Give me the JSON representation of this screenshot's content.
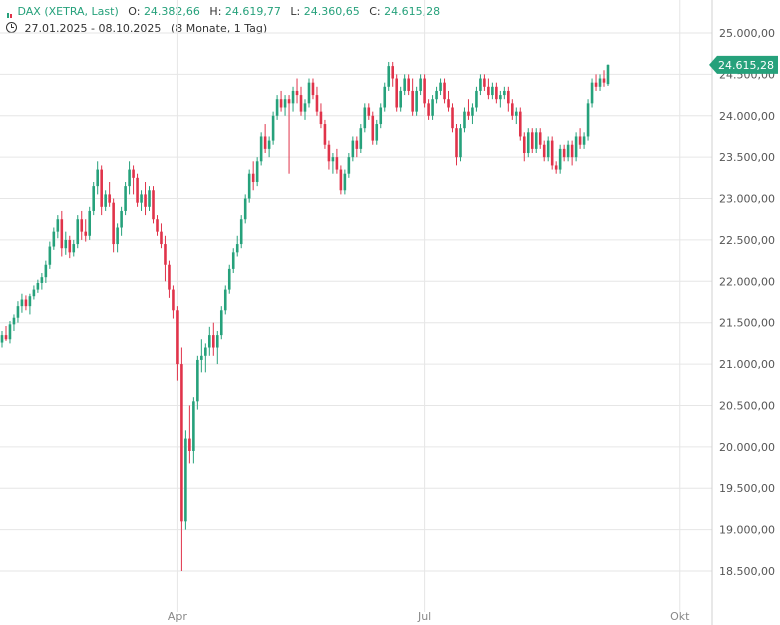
{
  "header": {
    "symbol": "DAX (XETRA, Last)",
    "open_label": "O:",
    "open": "24.382,66",
    "high_label": "H:",
    "high": "24.619,77",
    "low_label": "L:",
    "low": "24.360,65",
    "close_label": "C:",
    "close": "24.615,28",
    "date_range": "27.01.2025 - 08.10.2025",
    "period": "(8 Monate, 1 Tag)"
  },
  "colors": {
    "up": "#26a17b",
    "down": "#e0334a",
    "grid": "#e6e6e6",
    "axis_text": "#555555",
    "price_tag": "#26a17b"
  },
  "chart_data": {
    "type": "candlestick",
    "title": "DAX (XETRA, Last)",
    "ylim": [
      18500,
      25200
    ],
    "y_ticks": [
      "25.000,00",
      "24.500,00",
      "24.000,00",
      "23.500,00",
      "23.000,00",
      "22.500,00",
      "22.000,00",
      "21.500,00",
      "21.000,00",
      "20.500,00",
      "20.000,00",
      "19.500,00",
      "19.000,00",
      "18.500,00"
    ],
    "y_tick_values": [
      25000,
      24500,
      24000,
      23500,
      23000,
      22500,
      22000,
      21500,
      21000,
      20500,
      20000,
      19500,
      19000,
      18500
    ],
    "x_ticks": [
      {
        "label": "Apr",
        "index": 44
      },
      {
        "label": "Jul",
        "index": 106
      },
      {
        "label": "Okt",
        "index": 170
      }
    ],
    "last_price_label": "24.615,28",
    "last_price": 24615,
    "candles": [
      [
        21260,
        21400,
        21200,
        21350
      ],
      [
        21350,
        21460,
        21280,
        21300
      ],
      [
        21300,
        21520,
        21250,
        21480
      ],
      [
        21480,
        21600,
        21400,
        21560
      ],
      [
        21560,
        21760,
        21500,
        21700
      ],
      [
        21700,
        21850,
        21620,
        21780
      ],
      [
        21780,
        21830,
        21650,
        21700
      ],
      [
        21700,
        21850,
        21600,
        21820
      ],
      [
        21820,
        21950,
        21780,
        21900
      ],
      [
        21900,
        22020,
        21860,
        21980
      ],
      [
        21980,
        22100,
        21900,
        22050
      ],
      [
        22050,
        22250,
        21980,
        22200
      ],
      [
        22200,
        22480,
        22150,
        22420
      ],
      [
        22420,
        22650,
        22380,
        22600
      ],
      [
        22600,
        22800,
        22520,
        22750
      ],
      [
        22750,
        22850,
        22300,
        22400
      ],
      [
        22400,
        22600,
        22320,
        22500
      ],
      [
        22500,
        22550,
        22280,
        22350
      ],
      [
        22350,
        22500,
        22300,
        22450
      ],
      [
        22450,
        22800,
        22400,
        22750
      ],
      [
        22750,
        22850,
        22500,
        22600
      ],
      [
        22600,
        22750,
        22480,
        22550
      ],
      [
        22550,
        22900,
        22500,
        22850
      ],
      [
        22850,
        23200,
        22800,
        23150
      ],
      [
        23150,
        23450,
        23050,
        23350
      ],
      [
        23350,
        23400,
        22800,
        22900
      ],
      [
        22900,
        23100,
        22850,
        23050
      ],
      [
        23050,
        23200,
        22900,
        22950
      ],
      [
        22950,
        23000,
        22350,
        22450
      ],
      [
        22450,
        22700,
        22350,
        22650
      ],
      [
        22650,
        22900,
        22550,
        22850
      ],
      [
        22850,
        23200,
        22800,
        23150
      ],
      [
        23150,
        23450,
        23050,
        23350
      ],
      [
        23350,
        23400,
        23050,
        23250
      ],
      [
        23250,
        23300,
        22900,
        22950
      ],
      [
        22950,
        23100,
        22850,
        23050
      ],
      [
        23050,
        23200,
        22800,
        22900
      ],
      [
        22900,
        23150,
        22850,
        23100
      ],
      [
        23100,
        23150,
        22700,
        22750
      ],
      [
        22750,
        22800,
        22550,
        22600
      ],
      [
        22600,
        22700,
        22400,
        22450
      ],
      [
        22450,
        22550,
        22000,
        22200
      ],
      [
        22200,
        22250,
        21800,
        21900
      ],
      [
        21900,
        21950,
        21550,
        21650
      ],
      [
        21650,
        21700,
        20800,
        21000
      ],
      [
        21000,
        21200,
        18500,
        19100
      ],
      [
        19100,
        20200,
        19000,
        20100
      ],
      [
        20100,
        20500,
        19800,
        19950
      ],
      [
        19950,
        20600,
        19800,
        20550
      ],
      [
        20550,
        21100,
        20450,
        21050
      ],
      [
        21050,
        21300,
        20900,
        21100
      ],
      [
        21100,
        21250,
        20900,
        21200
      ],
      [
        21200,
        21450,
        21100,
        21350
      ],
      [
        21350,
        21500,
        21100,
        21200
      ],
      [
        21200,
        21400,
        21000,
        21350
      ],
      [
        21350,
        21700,
        21300,
        21650
      ],
      [
        21650,
        21950,
        21600,
        21900
      ],
      [
        21900,
        22200,
        21850,
        22150
      ],
      [
        22150,
        22400,
        22100,
        22350
      ],
      [
        22350,
        22550,
        22300,
        22450
      ],
      [
        22450,
        22800,
        22400,
        22750
      ],
      [
        22750,
        23050,
        22700,
        23000
      ],
      [
        23000,
        23350,
        22950,
        23300
      ],
      [
        23300,
        23450,
        23100,
        23200
      ],
      [
        23200,
        23500,
        23150,
        23450
      ],
      [
        23450,
        23800,
        23400,
        23750
      ],
      [
        23750,
        23900,
        23550,
        23600
      ],
      [
        23600,
        23750,
        23500,
        23700
      ],
      [
        23700,
        24050,
        23650,
        24000
      ],
      [
        24000,
        24250,
        23950,
        24200
      ],
      [
        24200,
        24300,
        24050,
        24100
      ],
      [
        24100,
        24250,
        24000,
        24200
      ],
      [
        24200,
        24250,
        23300,
        24150
      ],
      [
        24150,
        24350,
        24050,
        24300
      ],
      [
        24300,
        24450,
        24150,
        24250
      ],
      [
        24250,
        24350,
        24000,
        24050
      ],
      [
        24050,
        24200,
        23950,
        24150
      ],
      [
        24150,
        24450,
        24100,
        24400
      ],
      [
        24400,
        24450,
        24200,
        24250
      ],
      [
        24250,
        24350,
        24000,
        24050
      ],
      [
        24050,
        24150,
        23850,
        23900
      ],
      [
        23900,
        23950,
        23600,
        23650
      ],
      [
        23650,
        23700,
        23350,
        23450
      ],
      [
        23450,
        23550,
        23300,
        23500
      ],
      [
        23500,
        23600,
        23300,
        23350
      ],
      [
        23350,
        23400,
        23050,
        23100
      ],
      [
        23100,
        23350,
        23050,
        23300
      ],
      [
        23300,
        23550,
        23250,
        23500
      ],
      [
        23500,
        23750,
        23450,
        23700
      ],
      [
        23700,
        23750,
        23500,
        23600
      ],
      [
        23600,
        23900,
        23550,
        23850
      ],
      [
        23850,
        24150,
        23800,
        24100
      ],
      [
        24100,
        24150,
        23950,
        24000
      ],
      [
        24000,
        24050,
        23650,
        23700
      ],
      [
        23700,
        23950,
        23650,
        23900
      ],
      [
        23900,
        24150,
        23850,
        24100
      ],
      [
        24100,
        24400,
        24050,
        24350
      ],
      [
        24350,
        24650,
        24300,
        24600
      ],
      [
        24600,
        24650,
        24350,
        24450
      ],
      [
        24450,
        24500,
        24050,
        24100
      ],
      [
        24100,
        24350,
        24050,
        24300
      ],
      [
        24300,
        24500,
        24250,
        24450
      ],
      [
        24450,
        24500,
        24250,
        24300
      ],
      [
        24300,
        24450,
        24000,
        24050
      ],
      [
        24050,
        24350,
        24000,
        24300
      ],
      [
        24300,
        24500,
        24250,
        24450
      ],
      [
        24450,
        24500,
        24100,
        24150
      ],
      [
        24150,
        24200,
        23950,
        24000
      ],
      [
        24000,
        24250,
        23950,
        24200
      ],
      [
        24200,
        24350,
        24150,
        24300
      ],
      [
        24300,
        24450,
        24250,
        24400
      ],
      [
        24400,
        24450,
        24150,
        24200
      ],
      [
        24200,
        24300,
        24050,
        24100
      ],
      [
        24100,
        24150,
        23800,
        23850
      ],
      [
        23850,
        23900,
        23400,
        23500
      ],
      [
        23500,
        23900,
        23450,
        23850
      ],
      [
        23850,
        24100,
        23800,
        24050
      ],
      [
        24050,
        24200,
        23950,
        24000
      ],
      [
        24000,
        24150,
        23900,
        24100
      ],
      [
        24100,
        24350,
        24050,
        24300
      ],
      [
        24300,
        24500,
        24250,
        24450
      ],
      [
        24450,
        24500,
        24300,
        24350
      ],
      [
        24350,
        24450,
        24200,
        24250
      ],
      [
        24250,
        24400,
        24200,
        24350
      ],
      [
        24350,
        24400,
        24150,
        24200
      ],
      [
        24200,
        24300,
        24100,
        24250
      ],
      [
        24250,
        24350,
        24200,
        24300
      ],
      [
        24300,
        24350,
        24050,
        24150
      ],
      [
        24150,
        24200,
        23950,
        24000
      ],
      [
        24000,
        24100,
        23900,
        24050
      ],
      [
        24050,
        24100,
        23700,
        23750
      ],
      [
        23750,
        23800,
        23450,
        23550
      ],
      [
        23550,
        23850,
        23500,
        23800
      ],
      [
        23800,
        23850,
        23550,
        23600
      ],
      [
        23600,
        23850,
        23550,
        23800
      ],
      [
        23800,
        23850,
        23600,
        23650
      ],
      [
        23650,
        23700,
        23450,
        23500
      ],
      [
        23500,
        23750,
        23450,
        23700
      ],
      [
        23700,
        23750,
        23350,
        23400
      ],
      [
        23400,
        23450,
        23300,
        23350
      ],
      [
        23350,
        23650,
        23300,
        23600
      ],
      [
        23600,
        23650,
        23450,
        23500
      ],
      [
        23500,
        23700,
        23450,
        23650
      ],
      [
        23650,
        23700,
        23400,
        23500
      ],
      [
        23500,
        23800,
        23450,
        23750
      ],
      [
        23750,
        23850,
        23600,
        23650
      ],
      [
        23650,
        23800,
        23600,
        23750
      ],
      [
        23750,
        24200,
        23700,
        24150
      ],
      [
        24150,
        24450,
        24100,
        24400
      ],
      [
        24400,
        24500,
        24300,
        24350
      ],
      [
        24350,
        24500,
        24300,
        24450
      ],
      [
        24450,
        24550,
        24350,
        24400
      ],
      [
        24382,
        24620,
        24360,
        24615
      ]
    ]
  }
}
